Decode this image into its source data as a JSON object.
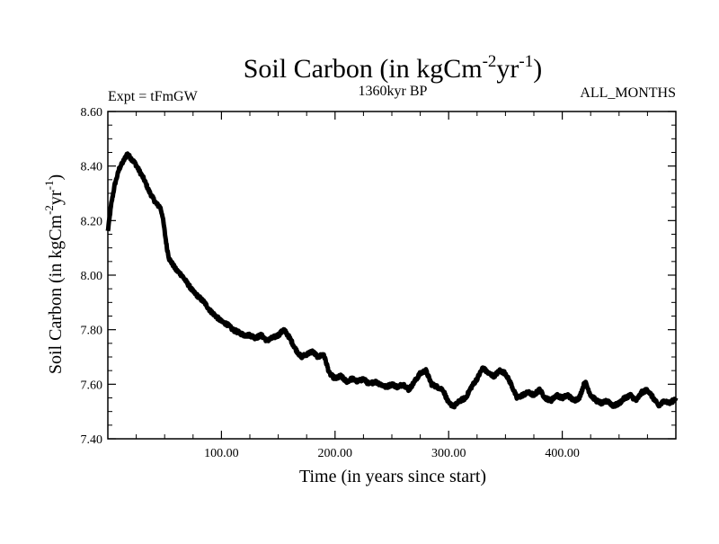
{
  "chart_data": {
    "type": "line",
    "title": {
      "main": "Soil Carbon (in kgCm",
      "sup1": "-2",
      "mid": "yr",
      "sup2": "-1",
      "end": ")"
    },
    "subtitle_left": "Expt = tFmGW",
    "subtitle_center": "1360kyr BP",
    "subtitle_right": "ALL_MONTHS",
    "xlabel": "Time (in years since start)",
    "ylabel": {
      "main": "Soil Carbon (in kgCm",
      "sup1": "-2",
      "mid": "yr",
      "sup2": "-1",
      "end": ")"
    },
    "xlim": [
      0,
      500
    ],
    "ylim": [
      7.4,
      8.6
    ],
    "xticks": [
      100,
      200,
      300,
      400
    ],
    "xtick_labels": [
      "100.00",
      "200.00",
      "300.00",
      "400.00"
    ],
    "yticks": [
      7.4,
      7.6,
      7.8,
      8.0,
      8.2,
      8.4,
      8.6
    ],
    "ytick_labels": [
      "7.40",
      "7.60",
      "7.80",
      "8.00",
      "8.20",
      "8.40",
      "8.60"
    ],
    "line_color": "#000000",
    "band_amplitude": 0.012,
    "series": [
      {
        "name": "Soil Carbon",
        "x": [
          0,
          3,
          6,
          10,
          14,
          17,
          20,
          24,
          28,
          32,
          36,
          40,
          43,
          46,
          48,
          50,
          52,
          54,
          57,
          60,
          65,
          70,
          75,
          80,
          85,
          90,
          95,
          100,
          105,
          110,
          115,
          120,
          125,
          130,
          135,
          140,
          145,
          150,
          155,
          160,
          165,
          170,
          175,
          180,
          185,
          190,
          195,
          200,
          205,
          210,
          215,
          220,
          225,
          230,
          235,
          240,
          245,
          250,
          255,
          260,
          265,
          270,
          275,
          280,
          285,
          290,
          295,
          300,
          305,
          310,
          315,
          320,
          325,
          330,
          335,
          340,
          345,
          350,
          355,
          360,
          365,
          370,
          375,
          380,
          385,
          390,
          395,
          400,
          405,
          410,
          415,
          420,
          425,
          430,
          435,
          440,
          445,
          450,
          455,
          460,
          465,
          470,
          475,
          480,
          485,
          490,
          495,
          500
        ],
        "y": [
          8.16,
          8.26,
          8.33,
          8.39,
          8.42,
          8.445,
          8.43,
          8.41,
          8.38,
          8.35,
          8.31,
          8.28,
          8.26,
          8.25,
          8.22,
          8.16,
          8.1,
          8.06,
          8.04,
          8.02,
          8.0,
          7.97,
          7.94,
          7.92,
          7.9,
          7.87,
          7.85,
          7.83,
          7.82,
          7.8,
          7.79,
          7.78,
          7.78,
          7.77,
          7.78,
          7.76,
          7.77,
          7.78,
          7.8,
          7.77,
          7.73,
          7.7,
          7.71,
          7.72,
          7.7,
          7.71,
          7.64,
          7.62,
          7.63,
          7.61,
          7.62,
          7.61,
          7.62,
          7.6,
          7.61,
          7.6,
          7.59,
          7.6,
          7.59,
          7.6,
          7.58,
          7.61,
          7.64,
          7.65,
          7.6,
          7.59,
          7.58,
          7.53,
          7.52,
          7.54,
          7.55,
          7.59,
          7.62,
          7.66,
          7.64,
          7.63,
          7.65,
          7.64,
          7.6,
          7.55,
          7.56,
          7.57,
          7.56,
          7.58,
          7.55,
          7.54,
          7.56,
          7.55,
          7.56,
          7.54,
          7.55,
          7.61,
          7.56,
          7.54,
          7.53,
          7.54,
          7.52,
          7.53,
          7.55,
          7.56,
          7.54,
          7.57,
          7.58,
          7.55,
          7.52,
          7.54,
          7.53,
          7.55
        ]
      }
    ]
  }
}
